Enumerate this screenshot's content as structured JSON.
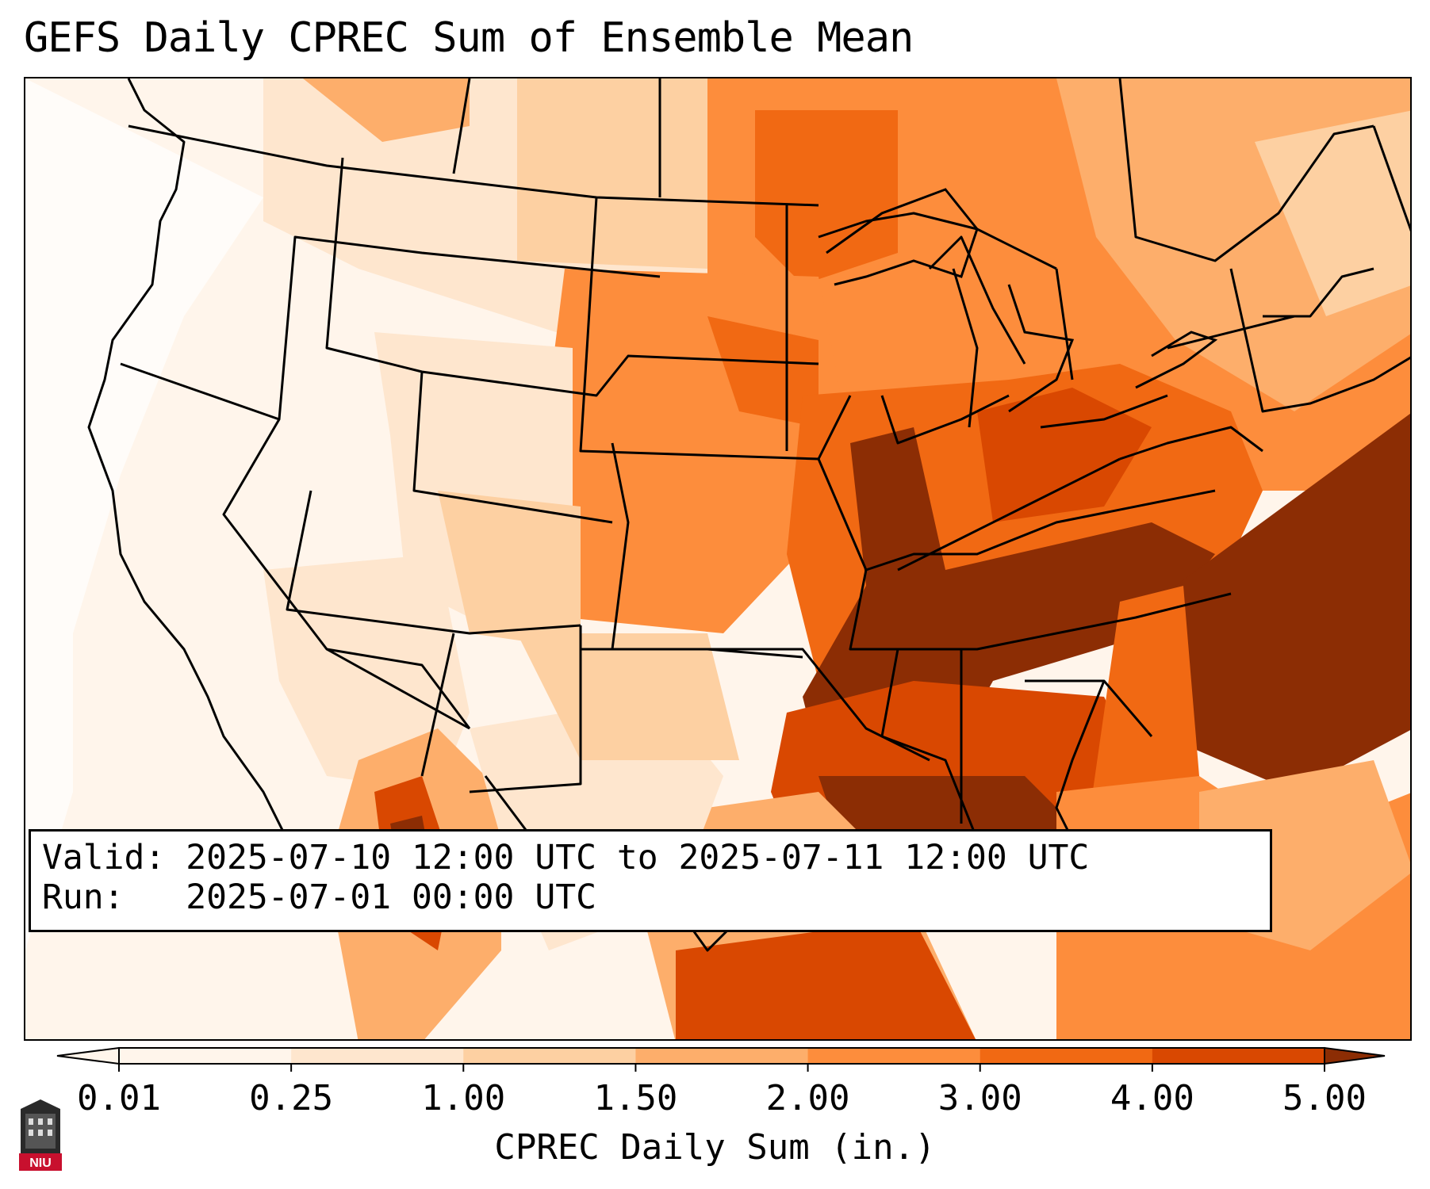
{
  "title": "GEFS Daily CPREC Sum of Ensemble Mean",
  "info": {
    "valid": "Valid: 2025-07-10 12:00 UTC to 2025-07-11 12:00 UTC",
    "run": "Run:   2025-07-01 00:00 UTC"
  },
  "colorbar": {
    "label": "CPREC Daily Sum (in.)",
    "ticks": [
      "0.01",
      "0.25",
      "1.00",
      "1.50",
      "2.00",
      "3.00",
      "4.00",
      "5.00"
    ],
    "colors": [
      "#fff5eb",
      "#fee6ce",
      "#fdd0a2",
      "#fdae6b",
      "#fd8d3c",
      "#f16913",
      "#d94801",
      "#8c2d04"
    ],
    "extend": "both"
  },
  "logo": {
    "text": "NIU"
  },
  "palette": {
    "border": "#000000",
    "high": "#8c2d04",
    "low": "#fff5eb"
  }
}
